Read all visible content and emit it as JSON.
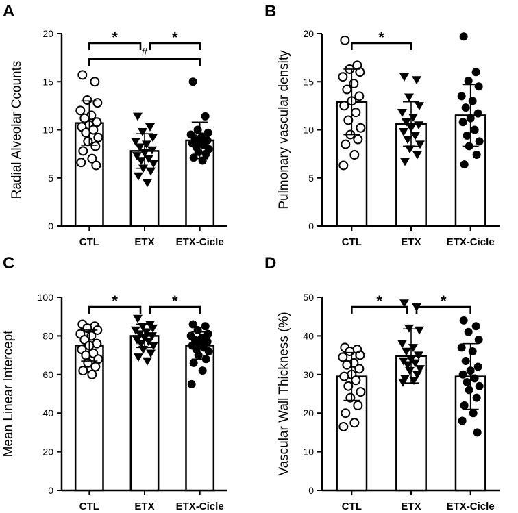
{
  "chart_data": [
    {
      "panel": "A",
      "type": "bar",
      "ylabel": "Radial Alveolar Ccounts",
      "ylim": [
        0,
        20
      ],
      "yticks": [
        0,
        5,
        10,
        15,
        20
      ],
      "categories": [
        "CTL",
        "ETX",
        "ETX-Cicle"
      ],
      "means": [
        10.7,
        7.8,
        8.9
      ],
      "sd": [
        2.3,
        1.8,
        1.9
      ],
      "points": [
        [
          15.7,
          15.0,
          13.1,
          12.8,
          12.0,
          11.5,
          11.2,
          10.8,
          10.5,
          10.3,
          10.0,
          9.7,
          9.2,
          8.8,
          8.3,
          7.8,
          7.0,
          6.6,
          6.3
        ],
        [
          11.4,
          10.3,
          9.8,
          9.2,
          8.8,
          8.5,
          8.2,
          7.9,
          7.6,
          7.3,
          7.0,
          6.8,
          6.5,
          6.0,
          5.7,
          5.2,
          4.5
        ],
        [
          15.0,
          11.4,
          10.0,
          9.7,
          9.5,
          9.3,
          9.1,
          8.9,
          8.8,
          8.6,
          8.4,
          8.2,
          8.0,
          7.7,
          7.5,
          7.1,
          6.8
        ]
      ],
      "marker_styles": [
        "open-circle",
        "filled-triangle-down",
        "filled-circle"
      ],
      "significance": [
        {
          "from": 0,
          "to": 1,
          "label": "*"
        },
        {
          "from": 1,
          "to": 2,
          "label": "*"
        },
        {
          "from": 0,
          "to": 2,
          "label": "#"
        }
      ]
    },
    {
      "panel": "B",
      "type": "bar",
      "ylabel": "Pulmonary vascular density",
      "ylim": [
        0,
        20
      ],
      "yticks": [
        0,
        5,
        10,
        15,
        20
      ],
      "categories": [
        "CTL",
        "ETX",
        "ETX-Cicle"
      ],
      "means": [
        12.9,
        10.6,
        11.5
      ],
      "sd": [
        3.4,
        2.3,
        3.2
      ],
      "points": [
        [
          19.3,
          16.7,
          16.3,
          16.0,
          15.5,
          14.8,
          14.2,
          13.5,
          13.0,
          12.5,
          11.8,
          11.0,
          10.2,
          9.5,
          9.0,
          8.5,
          7.4,
          6.3
        ],
        [
          15.5,
          15.2,
          13.4,
          12.5,
          11.8,
          11.3,
          10.8,
          10.5,
          10.2,
          9.8,
          9.4,
          9.0,
          8.5,
          8.0,
          7.4,
          6.7
        ],
        [
          19.7,
          16.0,
          15.1,
          14.5,
          13.5,
          13.0,
          12.3,
          11.7,
          11.2,
          10.8,
          10.0,
          9.4,
          8.8,
          8.3,
          7.4,
          6.4
        ]
      ],
      "marker_styles": [
        "open-circle",
        "filled-triangle-down",
        "filled-circle"
      ],
      "significance": [
        {
          "from": 0,
          "to": 1,
          "label": "*"
        }
      ]
    },
    {
      "panel": "C",
      "type": "bar",
      "ylabel": "Mean Linear Intercept",
      "ylim": [
        0,
        100
      ],
      "yticks": [
        0,
        20,
        40,
        60,
        80,
        100
      ],
      "categories": [
        "CTL",
        "ETX",
        "ETX-Cicle"
      ],
      "means": [
        75,
        80,
        75
      ],
      "sd": [
        8,
        6,
        7
      ],
      "points": [
        [
          86,
          85,
          84,
          83,
          81,
          80,
          78,
          76,
          75,
          73,
          71,
          70,
          68,
          66,
          64,
          62,
          60
        ],
        [
          89,
          86,
          85,
          84,
          83,
          82,
          81,
          80,
          79,
          78,
          77,
          76,
          75,
          73,
          71,
          69,
          67
        ],
        [
          86,
          85,
          83,
          81,
          80,
          79,
          78,
          77,
          76,
          75,
          74,
          73,
          72,
          70,
          68,
          66,
          62,
          55
        ]
      ],
      "marker_styles": [
        "open-circle",
        "filled-triangle-down",
        "filled-circle"
      ],
      "significance": [
        {
          "from": 0,
          "to": 1,
          "label": "*"
        },
        {
          "from": 1,
          "to": 2,
          "label": "*"
        }
      ]
    },
    {
      "panel": "D",
      "type": "bar",
      "ylabel": "Vascular Wall Thickness (%)",
      "ylim": [
        0,
        50
      ],
      "yticks": [
        0,
        10,
        20,
        30,
        40,
        50
      ],
      "categories": [
        "CTL",
        "ETX",
        "ETX-Cicle"
      ],
      "means": [
        29.5,
        34.8,
        29.5
      ],
      "sd": [
        6.2,
        7.0,
        8.5
      ],
      "points": [
        [
          37,
          36.5,
          36,
          35,
          34.5,
          33,
          32.5,
          31.5,
          30,
          29.5,
          28.5,
          27,
          25.5,
          24,
          22,
          20,
          17.5,
          16.5
        ],
        [
          48.5,
          47.5,
          42,
          41.5,
          38,
          37,
          36,
          35,
          34,
          33.5,
          33,
          32.5,
          31.5,
          31,
          30,
          29,
          28.5,
          28
        ],
        [
          44,
          42.5,
          41,
          39,
          37,
          36,
          33.5,
          32,
          31,
          30,
          29,
          28,
          27,
          26,
          24,
          22,
          20,
          18,
          15
        ]
      ],
      "marker_styles": [
        "open-circle",
        "filled-triangle-down",
        "filled-circle"
      ],
      "significance": [
        {
          "from": 0,
          "to": 1,
          "label": "*"
        },
        {
          "from": 1,
          "to": 2,
          "label": "*"
        }
      ]
    }
  ]
}
